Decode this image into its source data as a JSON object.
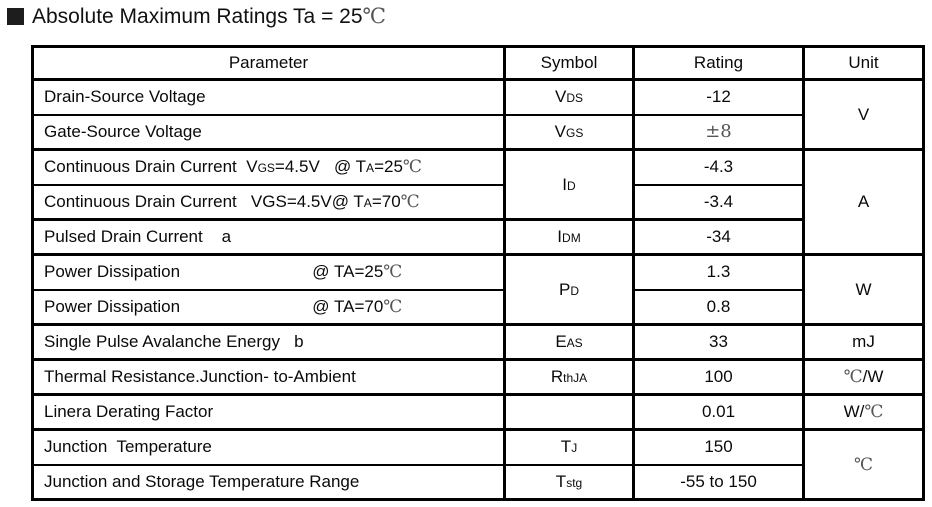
{
  "title": {
    "bullet_icon": "section-bullet",
    "segments": [
      {
        "t": "Absolute Maximum Ratings Ta = 25"
      },
      {
        "t": "℃",
        "style": "cjk"
      }
    ]
  },
  "table": {
    "headers": [
      {
        "id": "parameter",
        "label": "Parameter"
      },
      {
        "id": "symbol",
        "label": "Symbol"
      },
      {
        "id": "rating",
        "label": "Rating"
      },
      {
        "id": "unit",
        "label": "Unit"
      }
    ],
    "rows": [
      {
        "name": "drain-source-voltage",
        "cells": [
          {
            "col": "parameter",
            "segments": [
              {
                "t": "Drain-Source Voltage"
              }
            ]
          },
          {
            "col": "symbol",
            "segments": [
              {
                "t": "V"
              },
              {
                "t": "DS",
                "style": "sub"
              }
            ]
          },
          {
            "col": "rating",
            "segments": [
              {
                "t": "-12"
              }
            ]
          },
          {
            "col": "unit",
            "rowspan": 2,
            "hb": true,
            "segments": [
              {
                "t": "V"
              }
            ]
          }
        ]
      },
      {
        "name": "gate-source-voltage",
        "cells": [
          {
            "col": "parameter",
            "hb": true,
            "segments": [
              {
                "t": "Gate-Source Voltage"
              }
            ]
          },
          {
            "col": "symbol",
            "hb": true,
            "segments": [
              {
                "t": "V"
              },
              {
                "t": "GS",
                "style": "sub"
              }
            ]
          },
          {
            "col": "rating",
            "hb": true,
            "segments": [
              {
                "t": "±8",
                "style": "cjk"
              }
            ]
          }
        ]
      },
      {
        "name": "continuous-drain-current-25c",
        "cells": [
          {
            "col": "parameter",
            "segments": [
              {
                "t": "Continuous Drain Current  "
              },
              {
                "t": "V"
              },
              {
                "t": "GS",
                "style": "sub"
              },
              {
                "t": "=4.5V   @ T"
              },
              {
                "t": "A",
                "style": "sub"
              },
              {
                "t": "=25"
              },
              {
                "t": "℃",
                "style": "cjk"
              }
            ]
          },
          {
            "col": "symbol",
            "rowspan": 2,
            "hb": true,
            "segments": [
              {
                "t": "I"
              },
              {
                "t": "D",
                "style": "sub"
              }
            ]
          },
          {
            "col": "rating",
            "segments": [
              {
                "t": "-4.3"
              }
            ]
          },
          {
            "col": "unit",
            "rowspan": 3,
            "hb": true,
            "segments": [
              {
                "t": "A"
              }
            ]
          }
        ]
      },
      {
        "name": "continuous-drain-current-70c",
        "cells": [
          {
            "col": "parameter",
            "hb": true,
            "segments": [
              {
                "t": "Continuous Drain Current   VGS=4.5V@ T"
              },
              {
                "t": "A",
                "style": "sub"
              },
              {
                "t": "=70"
              },
              {
                "t": "℃",
                "style": "cjk"
              }
            ]
          },
          {
            "col": "rating",
            "hb": true,
            "segments": [
              {
                "t": "-3.4"
              }
            ]
          }
        ]
      },
      {
        "name": "pulsed-drain-current",
        "cells": [
          {
            "col": "parameter",
            "hb": true,
            "segments": [
              {
                "t": "Pulsed Drain Current    a"
              }
            ]
          },
          {
            "col": "symbol",
            "hb": true,
            "segments": [
              {
                "t": "I"
              },
              {
                "t": "DM",
                "style": "sub"
              }
            ]
          },
          {
            "col": "rating",
            "hb": true,
            "segments": [
              {
                "t": "-34"
              }
            ]
          }
        ]
      },
      {
        "name": "power-dissipation-25c",
        "cells": [
          {
            "col": "parameter",
            "segments": [
              {
                "t": "Power Dissipation                            @ TA=25"
              },
              {
                "t": "℃",
                "style": "cjk"
              }
            ]
          },
          {
            "col": "symbol",
            "rowspan": 2,
            "hb": true,
            "segments": [
              {
                "t": "P"
              },
              {
                "t": "D",
                "style": "sub"
              }
            ]
          },
          {
            "col": "rating",
            "segments": [
              {
                "t": "1.3"
              }
            ]
          },
          {
            "col": "unit",
            "rowspan": 2,
            "hb": true,
            "segments": [
              {
                "t": "W"
              }
            ]
          }
        ]
      },
      {
        "name": "power-dissipation-70c",
        "cells": [
          {
            "col": "parameter",
            "hb": true,
            "segments": [
              {
                "t": "Power Dissipation                            @ TA=70"
              },
              {
                "t": "℃",
                "style": "cjk"
              }
            ]
          },
          {
            "col": "rating",
            "hb": true,
            "segments": [
              {
                "t": "0.8"
              }
            ]
          }
        ]
      },
      {
        "name": "single-pulse-avalanche-energy",
        "cells": [
          {
            "col": "parameter",
            "hb": true,
            "segments": [
              {
                "t": "Single Pulse Avalanche Energy   b"
              }
            ]
          },
          {
            "col": "symbol",
            "hb": true,
            "segments": [
              {
                "t": "E"
              },
              {
                "t": "AS",
                "style": "sub"
              }
            ]
          },
          {
            "col": "rating",
            "hb": true,
            "segments": [
              {
                "t": "33"
              }
            ]
          },
          {
            "col": "unit",
            "hb": true,
            "segments": [
              {
                "t": "mJ"
              }
            ]
          }
        ]
      },
      {
        "name": "thermal-resistance-junction-to-ambient",
        "cells": [
          {
            "col": "parameter",
            "hb": true,
            "segments": [
              {
                "t": "Thermal Resistance.Junction- to-Ambient"
              }
            ]
          },
          {
            "col": "symbol",
            "hb": true,
            "segments": [
              {
                "t": "R"
              },
              {
                "t": "thJA",
                "style": "sub"
              }
            ]
          },
          {
            "col": "rating",
            "hb": true,
            "segments": [
              {
                "t": "100"
              }
            ]
          },
          {
            "col": "unit",
            "hb": true,
            "segments": [
              {
                "t": "℃",
                "style": "cjk"
              },
              {
                "t": "/W"
              }
            ]
          }
        ]
      },
      {
        "name": "linera-derating-factor",
        "cells": [
          {
            "col": "parameter",
            "hb": true,
            "segments": [
              {
                "t": "Linera Derating Factor"
              }
            ]
          },
          {
            "col": "symbol",
            "hb": true,
            "segments": []
          },
          {
            "col": "rating",
            "hb": true,
            "segments": [
              {
                "t": "0.01"
              }
            ]
          },
          {
            "col": "unit",
            "hb": true,
            "segments": [
              {
                "t": "W/"
              },
              {
                "t": "℃",
                "style": "cjk"
              }
            ]
          }
        ]
      },
      {
        "name": "junction-temperature",
        "cells": [
          {
            "col": "parameter",
            "segments": [
              {
                "t": "Junction  Temperature"
              }
            ]
          },
          {
            "col": "symbol",
            "segments": [
              {
                "t": "T"
              },
              {
                "t": "J",
                "style": "sub"
              }
            ]
          },
          {
            "col": "rating",
            "segments": [
              {
                "t": "150"
              }
            ]
          },
          {
            "col": "unit",
            "rowspan": 2,
            "segments": [
              {
                "t": "℃",
                "style": "cjk"
              }
            ]
          }
        ]
      },
      {
        "name": "junction-and-storage-temperature-range",
        "cells": [
          {
            "col": "parameter",
            "segments": [
              {
                "t": "Junction and Storage Temperature Range"
              }
            ]
          },
          {
            "col": "symbol",
            "segments": [
              {
                "t": "T"
              },
              {
                "t": "stg",
                "style": "sub"
              }
            ]
          },
          {
            "col": "rating",
            "segments": [
              {
                "t": "-55 to 150"
              }
            ]
          }
        ]
      }
    ]
  }
}
